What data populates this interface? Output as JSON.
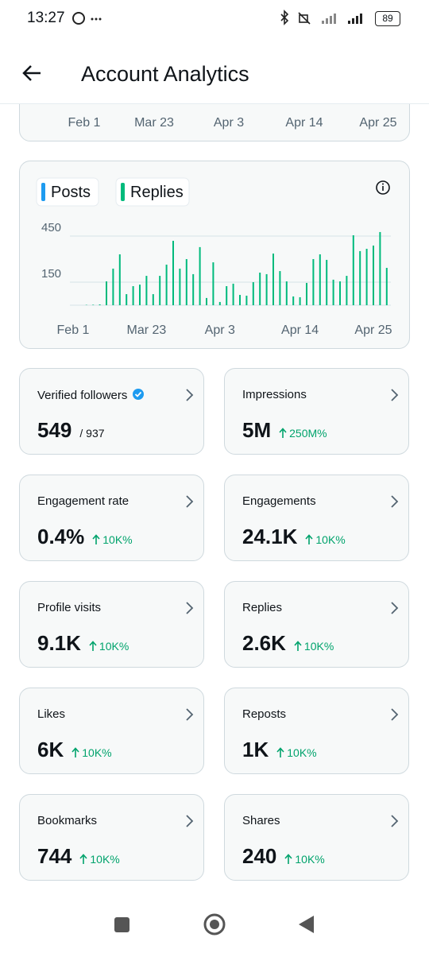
{
  "status_bar": {
    "time": "13:27",
    "battery": "89"
  },
  "header": {
    "title": "Account Analytics"
  },
  "top_chart": {
    "x_labels": [
      "Feb 1",
      "Mar 23",
      "Apr 3",
      "Apr 14",
      "Apr 25"
    ]
  },
  "chart_data": {
    "type": "bar",
    "legend": [
      {
        "name": "Posts",
        "color": "#1d9bf0"
      },
      {
        "name": "Replies",
        "color": "#00ba7c"
      }
    ],
    "color": "#00ba7c",
    "categories": [
      "Feb 1",
      null,
      null,
      null,
      null,
      null,
      null,
      null,
      null,
      null,
      null,
      "Mar 23",
      null,
      null,
      null,
      null,
      null,
      null,
      null,
      null,
      null,
      null,
      "Apr 3",
      null,
      null,
      null,
      null,
      null,
      null,
      null,
      null,
      null,
      null,
      null,
      "Apr 14",
      null,
      null,
      null,
      null,
      null,
      null,
      null,
      null,
      null,
      null,
      "Apr 25",
      null,
      null
    ],
    "values": [
      0,
      0,
      2,
      3,
      5,
      155,
      238,
      331,
      72,
      124,
      134,
      191,
      72,
      191,
      264,
      419,
      238,
      300,
      202,
      378,
      47,
      279,
      21,
      124,
      140,
      67,
      62,
      150,
      212,
      202,
      336,
      222,
      155,
      57,
      52,
      145,
      300,
      331,
      295,
      166,
      155,
      191,
      455,
      352,
      367,
      388,
      476,
      243
    ],
    "ylim": [
      0,
      500
    ],
    "yticks": [
      150,
      450
    ],
    "grid": true
  },
  "cards": [
    {
      "label": "Verified followers",
      "value": "549",
      "total": "/ 937"
    },
    {
      "label": "Impressions",
      "value": "5M",
      "change": "250M%"
    },
    {
      "label": "Engagement rate",
      "value": "0.4%",
      "change": "10K%"
    },
    {
      "label": "Engagements",
      "value": "24.1K",
      "change": "10K%"
    },
    {
      "label": "Profile visits",
      "value": "9.1K",
      "change": "10K%"
    },
    {
      "label": "Replies",
      "value": "2.6K",
      "change": "10K%"
    },
    {
      "label": "Likes",
      "value": "6K",
      "change": "10K%"
    },
    {
      "label": "Reposts",
      "value": "1K",
      "change": "10K%"
    },
    {
      "label": "Bookmarks",
      "value": "744",
      "change": "10K%"
    },
    {
      "label": "Shares",
      "value": "240",
      "change": "10K%"
    }
  ]
}
